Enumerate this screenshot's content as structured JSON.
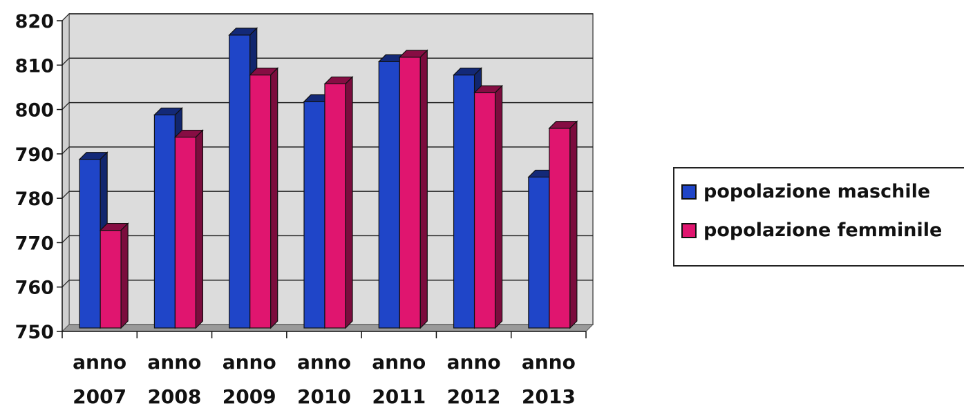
{
  "chart_data": {
    "type": "bar",
    "categories": [
      [
        "anno",
        "2007"
      ],
      [
        "anno",
        "2008"
      ],
      [
        "anno",
        "2009"
      ],
      [
        "anno",
        "2010"
      ],
      [
        "anno",
        "2011"
      ],
      [
        "anno",
        "2012"
      ],
      [
        "anno",
        "2013"
      ]
    ],
    "series": [
      {
        "name": "popolazione maschile",
        "color": "#1f45c8",
        "values": [
          788,
          798,
          816,
          801,
          810,
          807,
          784
        ]
      },
      {
        "name": "popolazione femminile",
        "color": "#e0156f",
        "values": [
          772,
          793,
          807,
          805,
          811,
          803,
          795
        ]
      }
    ],
    "ylim": [
      750,
      820
    ],
    "yticks": [
      "750",
      "760",
      "770",
      "780",
      "790",
      "800",
      "810",
      "820"
    ],
    "grid": true,
    "legend_position": "right",
    "style": "3d-bar"
  }
}
